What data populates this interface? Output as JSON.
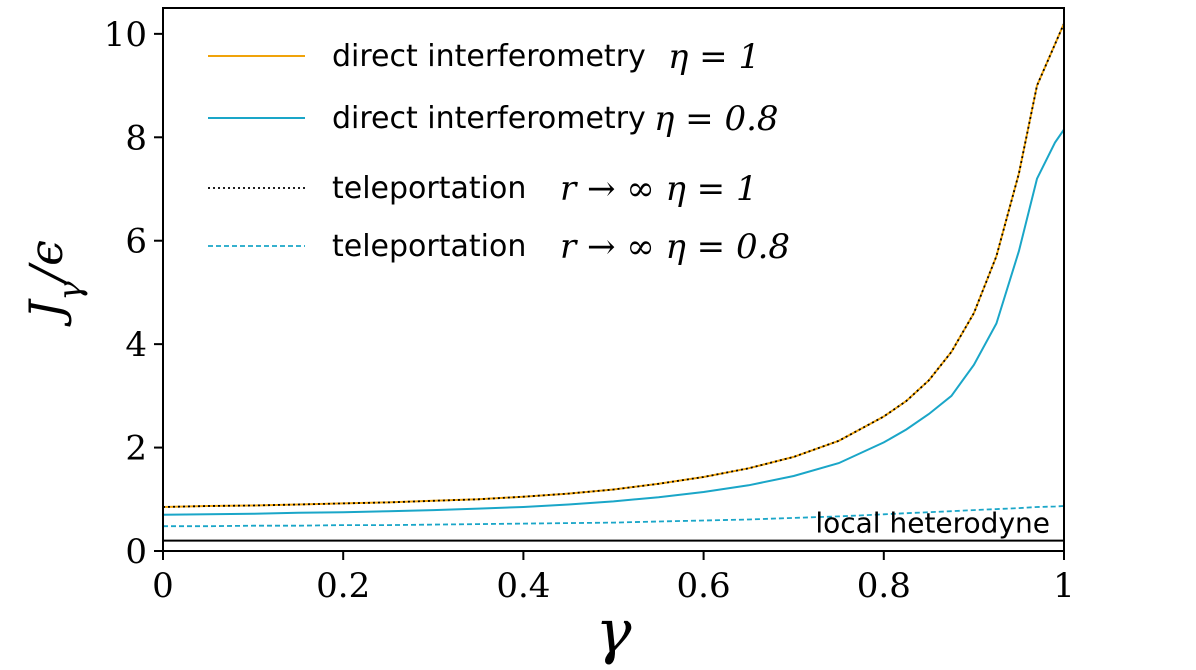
{
  "chart_data": {
    "type": "line",
    "xlabel": "γ",
    "ylabel": "J_γ/ϵ",
    "xlim": [
      0,
      1
    ],
    "ylim": [
      0,
      10.5
    ],
    "x_ticks": [
      0,
      0.2,
      0.4,
      0.6,
      0.8,
      1
    ],
    "x_tick_labels": [
      "0",
      "0.2",
      "0.4",
      "0.6",
      "0.8",
      "1"
    ],
    "y_ticks": [
      0,
      2,
      4,
      6,
      8,
      10
    ],
    "y_tick_labels": [
      "0",
      "2",
      "4",
      "6",
      "8",
      "10"
    ],
    "grid": false,
    "legend_position": "top-left",
    "x": [
      0,
      0.05,
      0.1,
      0.15,
      0.2,
      0.25,
      0.3,
      0.35,
      0.4,
      0.45,
      0.5,
      0.55,
      0.6,
      0.65,
      0.7,
      0.75,
      0.8,
      0.825,
      0.85,
      0.875,
      0.9,
      0.925,
      0.95,
      0.97,
      0.99,
      1.0
    ],
    "series": [
      {
        "label_text": "direct interferometry",
        "label_math": "η = 1",
        "color": "#f0a30a",
        "style": "solid",
        "values": [
          0.85,
          0.87,
          0.88,
          0.9,
          0.92,
          0.94,
          0.97,
          1.0,
          1.05,
          1.11,
          1.19,
          1.3,
          1.43,
          1.6,
          1.82,
          2.13,
          2.6,
          2.9,
          3.3,
          3.85,
          4.6,
          5.7,
          7.3,
          9.0,
          9.8,
          10.2
        ]
      },
      {
        "label_text": "direct interferometry",
        "label_math": "η = 0.8",
        "color": "#1aa6c8",
        "style": "solid",
        "values": [
          0.7,
          0.71,
          0.72,
          0.74,
          0.75,
          0.77,
          0.79,
          0.82,
          0.85,
          0.9,
          0.96,
          1.04,
          1.14,
          1.27,
          1.45,
          1.7,
          2.1,
          2.35,
          2.65,
          3.0,
          3.6,
          4.4,
          5.8,
          7.2,
          7.9,
          8.15
        ]
      },
      {
        "label_text": "teleportation",
        "label_math": "r → ∞   η = 1",
        "color": "#000000",
        "style": "dotted",
        "values": [
          0.85,
          0.87,
          0.88,
          0.9,
          0.92,
          0.94,
          0.97,
          1.0,
          1.05,
          1.11,
          1.19,
          1.3,
          1.43,
          1.6,
          1.82,
          2.13,
          2.6,
          2.9,
          3.3,
          3.85,
          4.6,
          5.7,
          7.3,
          9.0,
          9.8,
          10.2
        ]
      },
      {
        "label_text": "teleportation",
        "label_math": "r → ∞   η = 0.8",
        "color": "#1aa6c8",
        "style": "dashed",
        "values": [
          0.48,
          0.48,
          0.49,
          0.49,
          0.5,
          0.5,
          0.51,
          0.52,
          0.53,
          0.54,
          0.55,
          0.57,
          0.59,
          0.61,
          0.64,
          0.67,
          0.71,
          0.73,
          0.75,
          0.77,
          0.79,
          0.81,
          0.83,
          0.85,
          0.86,
          0.87
        ]
      }
    ],
    "reference_line": {
      "label": "local heterodyne",
      "y": 0.2,
      "color": "#000000"
    }
  }
}
